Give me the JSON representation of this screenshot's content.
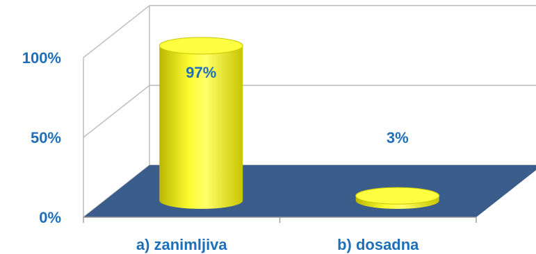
{
  "chart_data": {
    "type": "bar",
    "subtype": "3d-cylinder",
    "categories": [
      "a) zanimljiva",
      "b) dosadna"
    ],
    "values": [
      97,
      3
    ],
    "data_labels": [
      "97%",
      "3%"
    ],
    "ylim": [
      0,
      100
    ],
    "yticks": [
      {
        "value": 0,
        "label": "0%"
      },
      {
        "value": 50,
        "label": "50%"
      },
      {
        "value": 100,
        "label": "100%"
      }
    ],
    "grid": true,
    "legend": "none",
    "colors": {
      "bar": "#f2f000",
      "bar_shade": "#a8a600",
      "floor": "#3a5d8c",
      "label_text": "#1f6fb8",
      "wall_lines": "#b9b9b9"
    }
  }
}
